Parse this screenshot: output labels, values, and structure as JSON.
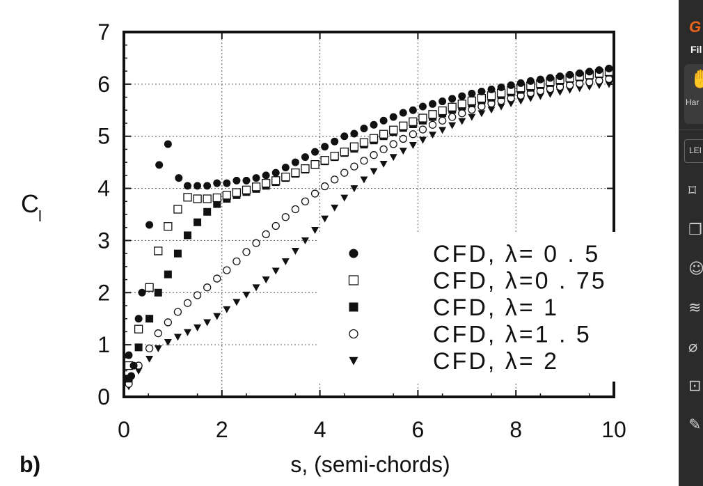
{
  "chart_data": {
    "type": "scatter",
    "panel_label": "b)",
    "xlabel": "s, (semi-chords)",
    "ylabel": "C",
    "ylabel_sub": "l",
    "xlim": [
      0,
      10
    ],
    "ylim": [
      0,
      7
    ],
    "xticks": [
      "0",
      "2",
      "4",
      "6",
      "8",
      "10"
    ],
    "yticks": [
      "0",
      "1",
      "2",
      "3",
      "4",
      "5",
      "6",
      "7"
    ],
    "grid": "dotted",
    "legend_position": "lower-right",
    "series": [
      {
        "name": "CFD, λ= 0 . 5",
        "marker": "filled-circle",
        "points": [
          [
            0.1,
            0.8
          ],
          [
            0.15,
            0.4
          ],
          [
            0.2,
            0.6
          ],
          [
            0.3,
            1.5
          ],
          [
            0.37,
            2.0
          ],
          [
            0.52,
            3.3
          ],
          [
            0.72,
            4.45
          ],
          [
            0.9,
            4.85
          ],
          [
            1.12,
            4.2
          ],
          [
            1.3,
            4.05
          ],
          [
            1.5,
            4.05
          ],
          [
            1.7,
            4.05
          ],
          [
            1.9,
            4.1
          ],
          [
            2.1,
            4.1
          ],
          [
            2.3,
            4.15
          ],
          [
            2.5,
            4.15
          ],
          [
            2.7,
            4.2
          ],
          [
            2.9,
            4.25
          ],
          [
            3.1,
            4.3
          ],
          [
            3.3,
            4.4
          ],
          [
            3.5,
            4.5
          ],
          [
            3.7,
            4.6
          ],
          [
            3.9,
            4.7
          ],
          [
            4.1,
            4.8
          ],
          [
            4.3,
            4.9
          ],
          [
            4.5,
            5.0
          ],
          [
            4.7,
            5.05
          ],
          [
            4.9,
            5.15
          ],
          [
            5.1,
            5.22
          ],
          [
            5.3,
            5.3
          ],
          [
            5.5,
            5.37
          ],
          [
            5.7,
            5.45
          ],
          [
            5.9,
            5.5
          ],
          [
            6.1,
            5.57
          ],
          [
            6.3,
            5.62
          ],
          [
            6.5,
            5.67
          ],
          [
            6.7,
            5.72
          ],
          [
            6.9,
            5.77
          ],
          [
            7.1,
            5.82
          ],
          [
            7.3,
            5.86
          ],
          [
            7.5,
            5.9
          ],
          [
            7.7,
            5.94
          ],
          [
            7.9,
            5.98
          ],
          [
            8.1,
            6.02
          ],
          [
            8.3,
            6.06
          ],
          [
            8.5,
            6.09
          ],
          [
            8.7,
            6.12
          ],
          [
            8.9,
            6.15
          ],
          [
            9.1,
            6.18
          ],
          [
            9.3,
            6.21
          ],
          [
            9.5,
            6.24
          ],
          [
            9.7,
            6.27
          ],
          [
            9.9,
            6.3
          ]
        ]
      },
      {
        "name": "CFD, λ=0 . 75",
        "marker": "open-square",
        "points": [
          [
            0.1,
            0.6
          ],
          [
            0.3,
            1.3
          ],
          [
            0.52,
            2.1
          ],
          [
            0.7,
            2.8
          ],
          [
            0.9,
            3.27
          ],
          [
            1.1,
            3.6
          ],
          [
            1.3,
            3.83
          ],
          [
            1.5,
            3.8
          ],
          [
            1.7,
            3.8
          ],
          [
            1.9,
            3.82
          ],
          [
            2.1,
            3.87
          ],
          [
            2.3,
            3.92
          ],
          [
            2.5,
            3.97
          ],
          [
            2.7,
            4.03
          ],
          [
            2.9,
            4.1
          ],
          [
            3.1,
            4.15
          ],
          [
            3.3,
            4.22
          ],
          [
            3.5,
            4.3
          ],
          [
            3.7,
            4.38
          ],
          [
            3.9,
            4.46
          ],
          [
            4.1,
            4.54
          ],
          [
            4.3,
            4.62
          ],
          [
            4.5,
            4.7
          ],
          [
            4.7,
            4.8
          ],
          [
            4.9,
            4.88
          ],
          [
            5.1,
            4.96
          ],
          [
            5.3,
            5.04
          ],
          [
            5.5,
            5.12
          ],
          [
            5.7,
            5.2
          ],
          [
            5.9,
            5.28
          ],
          [
            6.1,
            5.35
          ],
          [
            6.3,
            5.42
          ],
          [
            6.5,
            5.49
          ],
          [
            6.7,
            5.56
          ],
          [
            6.9,
            5.62
          ],
          [
            7.1,
            5.68
          ],
          [
            7.3,
            5.73
          ],
          [
            7.5,
            5.78
          ],
          [
            7.7,
            5.83
          ],
          [
            7.9,
            5.88
          ],
          [
            8.1,
            5.93
          ],
          [
            8.3,
            5.97
          ],
          [
            8.5,
            6.01
          ],
          [
            8.7,
            6.05
          ],
          [
            8.9,
            6.09
          ],
          [
            9.1,
            6.12
          ],
          [
            9.3,
            6.15
          ],
          [
            9.5,
            6.18
          ],
          [
            9.7,
            6.21
          ],
          [
            9.9,
            6.24
          ]
        ]
      },
      {
        "name": "CFD, λ= 1",
        "marker": "filled-square",
        "points": [
          [
            0.1,
            0.35
          ],
          [
            0.3,
            0.95
          ],
          [
            0.52,
            1.5
          ],
          [
            0.7,
            2.0
          ],
          [
            0.9,
            2.35
          ],
          [
            1.1,
            2.75
          ],
          [
            1.3,
            3.1
          ],
          [
            1.5,
            3.35
          ],
          [
            1.7,
            3.55
          ],
          [
            1.9,
            3.7
          ],
          [
            2.1,
            3.8
          ],
          [
            2.3,
            3.87
          ],
          [
            2.5,
            3.93
          ],
          [
            2.7,
            3.99
          ],
          [
            2.9,
            4.05
          ],
          [
            3.1,
            4.12
          ],
          [
            3.3,
            4.2
          ],
          [
            3.5,
            4.28
          ],
          [
            3.7,
            4.36
          ],
          [
            3.9,
            4.45
          ],
          [
            4.1,
            4.52
          ],
          [
            4.3,
            4.6
          ],
          [
            4.5,
            4.68
          ],
          [
            4.7,
            4.76
          ],
          [
            4.9,
            4.84
          ],
          [
            5.1,
            4.92
          ],
          [
            5.3,
            5.0
          ],
          [
            5.5,
            5.08
          ],
          [
            5.7,
            5.16
          ],
          [
            5.9,
            5.23
          ],
          [
            6.1,
            5.3
          ],
          [
            6.3,
            5.37
          ],
          [
            6.5,
            5.44
          ],
          [
            6.7,
            5.51
          ],
          [
            6.9,
            5.57
          ],
          [
            7.1,
            5.63
          ],
          [
            7.3,
            5.69
          ],
          [
            7.5,
            5.74
          ],
          [
            7.7,
            5.79
          ],
          [
            7.9,
            5.84
          ],
          [
            8.1,
            5.89
          ],
          [
            8.3,
            5.93
          ],
          [
            8.5,
            5.98
          ],
          [
            8.7,
            6.02
          ],
          [
            8.9,
            6.06
          ],
          [
            9.1,
            6.1
          ],
          [
            9.3,
            6.13
          ],
          [
            9.5,
            6.16
          ],
          [
            9.7,
            6.19
          ],
          [
            9.9,
            6.22
          ]
        ]
      },
      {
        "name": "CFD, λ=1 . 5",
        "marker": "open-circle",
        "points": [
          [
            0.1,
            0.25
          ],
          [
            0.3,
            0.6
          ],
          [
            0.52,
            0.93
          ],
          [
            0.7,
            1.22
          ],
          [
            0.9,
            1.43
          ],
          [
            1.1,
            1.63
          ],
          [
            1.3,
            1.8
          ],
          [
            1.5,
            1.95
          ],
          [
            1.7,
            2.1
          ],
          [
            1.9,
            2.27
          ],
          [
            2.1,
            2.43
          ],
          [
            2.3,
            2.6
          ],
          [
            2.5,
            2.78
          ],
          [
            2.7,
            2.95
          ],
          [
            2.9,
            3.12
          ],
          [
            3.1,
            3.28
          ],
          [
            3.3,
            3.45
          ],
          [
            3.5,
            3.6
          ],
          [
            3.7,
            3.75
          ],
          [
            3.9,
            3.9
          ],
          [
            4.1,
            4.04
          ],
          [
            4.3,
            4.17
          ],
          [
            4.5,
            4.3
          ],
          [
            4.7,
            4.42
          ],
          [
            4.9,
            4.53
          ],
          [
            5.1,
            4.64
          ],
          [
            5.3,
            4.75
          ],
          [
            5.5,
            4.85
          ],
          [
            5.7,
            4.95
          ],
          [
            5.9,
            5.04
          ],
          [
            6.1,
            5.13
          ],
          [
            6.3,
            5.22
          ],
          [
            6.5,
            5.3
          ],
          [
            6.7,
            5.37
          ],
          [
            6.9,
            5.44
          ],
          [
            7.1,
            5.51
          ],
          [
            7.3,
            5.57
          ],
          [
            7.5,
            5.63
          ],
          [
            7.7,
            5.68
          ],
          [
            7.9,
            5.73
          ],
          [
            8.1,
            5.78
          ],
          [
            8.3,
            5.83
          ],
          [
            8.5,
            5.87
          ],
          [
            8.7,
            5.91
          ],
          [
            8.9,
            5.95
          ],
          [
            9.1,
            5.98
          ],
          [
            9.3,
            6.01
          ],
          [
            9.5,
            6.04
          ],
          [
            9.7,
            6.07
          ],
          [
            9.9,
            6.1
          ]
        ]
      },
      {
        "name": "CFD, λ= 2",
        "marker": "filled-triangle-down",
        "points": [
          [
            0.1,
            0.2
          ],
          [
            0.3,
            0.5
          ],
          [
            0.52,
            0.73
          ],
          [
            0.7,
            0.93
          ],
          [
            0.9,
            1.05
          ],
          [
            1.1,
            1.15
          ],
          [
            1.3,
            1.24
          ],
          [
            1.5,
            1.33
          ],
          [
            1.7,
            1.43
          ],
          [
            1.9,
            1.55
          ],
          [
            2.1,
            1.68
          ],
          [
            2.3,
            1.82
          ],
          [
            2.5,
            1.96
          ],
          [
            2.7,
            2.1
          ],
          [
            2.9,
            2.25
          ],
          [
            3.1,
            2.42
          ],
          [
            3.3,
            2.6
          ],
          [
            3.5,
            2.8
          ],
          [
            3.7,
            3.0
          ],
          [
            3.9,
            3.2
          ],
          [
            4.1,
            3.42
          ],
          [
            4.3,
            3.63
          ],
          [
            4.5,
            3.82
          ],
          [
            4.7,
            4.0
          ],
          [
            4.9,
            4.17
          ],
          [
            5.1,
            4.33
          ],
          [
            5.3,
            4.47
          ],
          [
            5.5,
            4.6
          ],
          [
            5.7,
            4.72
          ],
          [
            5.9,
            4.83
          ],
          [
            6.1,
            4.93
          ],
          [
            6.3,
            5.03
          ],
          [
            6.5,
            5.12
          ],
          [
            6.7,
            5.21
          ],
          [
            6.9,
            5.29
          ],
          [
            7.1,
            5.37
          ],
          [
            7.3,
            5.44
          ],
          [
            7.5,
            5.51
          ],
          [
            7.7,
            5.57
          ],
          [
            7.9,
            5.63
          ],
          [
            8.1,
            5.68
          ],
          [
            8.3,
            5.73
          ],
          [
            8.5,
            5.77
          ],
          [
            8.7,
            5.81
          ],
          [
            8.9,
            5.85
          ],
          [
            9.1,
            5.89
          ],
          [
            9.3,
            5.92
          ],
          [
            9.5,
            5.95
          ],
          [
            9.7,
            5.98
          ],
          [
            9.9,
            6.0
          ]
        ]
      }
    ]
  },
  "toolbar": {
    "logo": "G",
    "menu_label": "Fil",
    "hand_label": "Har",
    "tab_label": "LEI",
    "icons": [
      "bookmark-icon",
      "pages-icon",
      "comment-icon",
      "layers-icon",
      "attachment-icon",
      "lock-icon",
      "signature-icon"
    ],
    "icon_glyphs": [
      "⌑",
      "❐",
      "☺",
      "≋",
      "⌀",
      "⊡",
      "✎"
    ]
  }
}
